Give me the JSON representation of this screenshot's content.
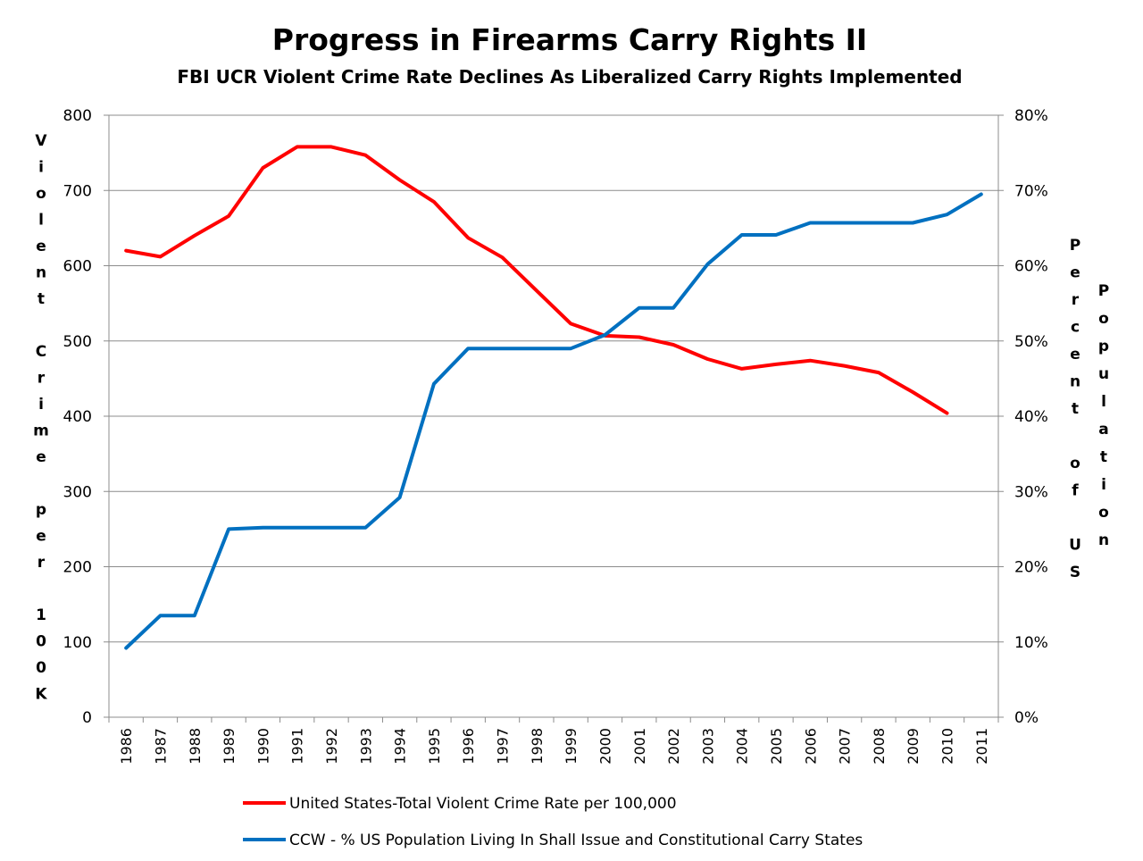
{
  "chart_data": {
    "type": "line",
    "title": "Progress in Firearms Carry Rights II",
    "subtitle": "FBI UCR  Violent Crime Rate Declines As Liberalized Carry Rights Implemented",
    "ylabel_left": "Violent Crime per 100K",
    "ylabel_right_1": "Percent of US",
    "ylabel_right_2": "Population",
    "ylim_left": [
      0,
      800
    ],
    "ylim_right": [
      0,
      0.8
    ],
    "yticks_left": [
      "0",
      "100",
      "200",
      "300",
      "400",
      "500",
      "600",
      "700",
      "800"
    ],
    "yticks_right": [
      "0%",
      "10%",
      "20%",
      "30%",
      "40%",
      "50%",
      "60%",
      "70%",
      "80%"
    ],
    "grid": true,
    "legend_position": "bottom",
    "categories": [
      "1986",
      "1987",
      "1988",
      "1989",
      "1990",
      "1991",
      "1992",
      "1993",
      "1994",
      "1995",
      "1996",
      "1997",
      "1998",
      "1999",
      "2000",
      "2001",
      "2002",
      "2003",
      "2004",
      "2005",
      "2006",
      "2007",
      "2008",
      "2009",
      "2010",
      "2011"
    ],
    "series": [
      {
        "name": "United States-Total Violent Crime Rate per 100,000",
        "color": "#ff0000",
        "axis": "left",
        "values": [
          620,
          612,
          640,
          666,
          730,
          758,
          758,
          747,
          714,
          685,
          637,
          611,
          567,
          523,
          507,
          505,
          495,
          476,
          463,
          469,
          474,
          467,
          458,
          432,
          404,
          null
        ]
      },
      {
        "name": "CCW - % US Population Living In Shall Issue and Constitutional Carry States",
        "color": "#0070c0",
        "axis": "right",
        "values": [
          0.092,
          0.135,
          0.135,
          0.25,
          0.252,
          0.252,
          0.252,
          0.252,
          0.292,
          0.443,
          0.49,
          0.49,
          0.49,
          0.49,
          0.508,
          0.544,
          0.544,
          0.602,
          0.641,
          0.641,
          0.657,
          0.657,
          0.657,
          0.657,
          0.668,
          0.695
        ]
      }
    ]
  }
}
